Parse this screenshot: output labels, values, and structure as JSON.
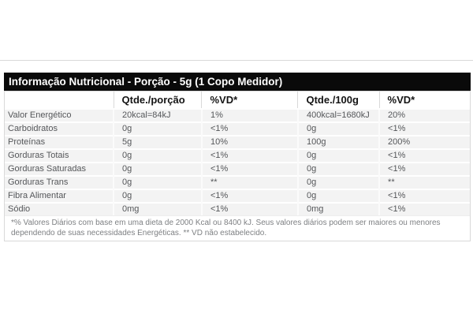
{
  "page": {
    "background": "#ffffff",
    "top_divider_color": "#d9d9d9"
  },
  "nutrition_table": {
    "title": "Informação Nutricional - Porção - 5g (1 Copo Medidor)",
    "columns": [
      "",
      "Qtde./porção",
      "%VD*",
      "Qtde./100g",
      "%VD*"
    ],
    "rows": [
      {
        "cells": [
          "Valor Energético",
          "20kcal=84kJ",
          "1%",
          "400kcal=1680kJ",
          "20%"
        ]
      },
      {
        "cells": [
          "Carboidratos",
          "0g",
          "<1%",
          "0g",
          "<1%"
        ]
      },
      {
        "cells": [
          "Proteínas",
          "5g",
          "10%",
          "100g",
          "200%"
        ]
      },
      {
        "cells": [
          "Gorduras Totais",
          "0g",
          "<1%",
          "0g",
          "<1%"
        ]
      },
      {
        "cells": [
          "Gorduras Saturadas",
          "0g",
          "<1%",
          "0g",
          "<1%"
        ]
      },
      {
        "cells": [
          "Gorduras Trans",
          "0g",
          "**",
          "0g",
          "**"
        ]
      },
      {
        "cells": [
          "Fibra Alimentar",
          "0g",
          "<1%",
          "0g",
          "<1%"
        ]
      },
      {
        "cells": [
          "Sódio",
          "0mg",
          "<1%",
          "0mg",
          "<1%"
        ]
      }
    ],
    "footnote": "*% Valores Diários com base em uma dieta de 2000 Kcal ou 8400 kJ. Seus valores diários podem ser maiores ou menores dependendo de suas necessidades Energéticas. ** VD não estabelecido.",
    "colors": {
      "title_bar_bg": "#0a0a0a",
      "title_text": "#ffffff",
      "header_text": "#141414",
      "row_bg": "#f3f3f3",
      "row_text": "#55575a",
      "footnote_text": "#7e8083",
      "border": "#d9d9d9",
      "separator": "#ffffff"
    }
  }
}
